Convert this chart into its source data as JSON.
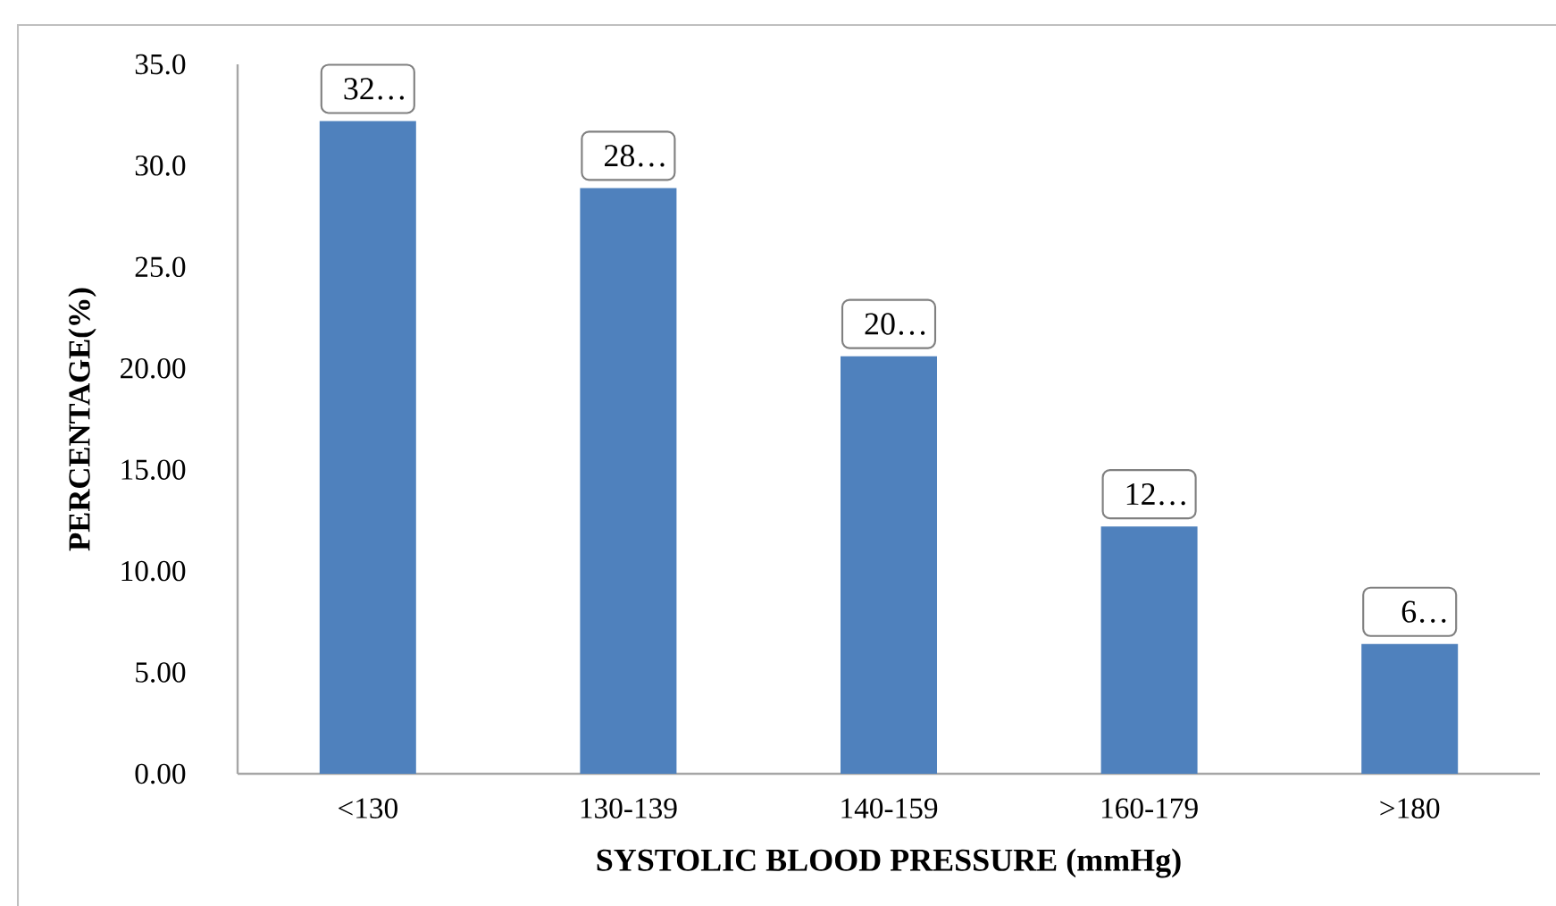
{
  "chart_data": {
    "type": "bar",
    "xlabel": "SYSTOLIC BLOOD PRESSURE (mmHg)",
    "ylabel": "PERCENTAGE(%)",
    "categories": [
      "<130",
      "130-139",
      "140-159",
      "160-179",
      ">180"
    ],
    "values": [
      32.2,
      28.9,
      20.6,
      12.2,
      6.4
    ],
    "value_labels": [
      "32…",
      "28…",
      "20…",
      "12…",
      "6…"
    ],
    "color": "#4f81bd",
    "ylim": [
      0,
      35
    ],
    "yticks": [
      {
        "value": 0,
        "label": "0.00"
      },
      {
        "value": 5,
        "label": "5.00"
      },
      {
        "value": 10,
        "label": "10.00"
      },
      {
        "value": 15,
        "label": "15.00"
      },
      {
        "value": 20,
        "label": "20.00"
      },
      {
        "value": 25,
        "label": "25.0"
      },
      {
        "value": 30,
        "label": "30.0"
      },
      {
        "value": 35,
        "label": "35.0"
      }
    ]
  }
}
